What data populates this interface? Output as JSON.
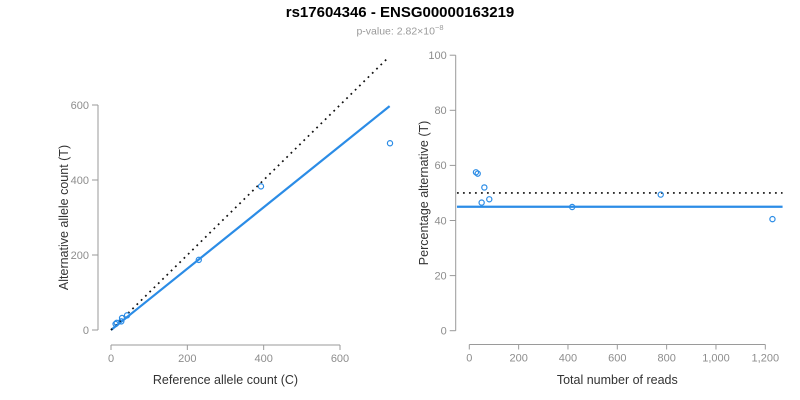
{
  "title": "rs17604346 - ENSG00000163219",
  "subtitle": {
    "prefix": "p-value: 2.82×10",
    "exponent": "−8"
  },
  "colors": {
    "accent_blue": "#2b8ce6",
    "axis_line_gray": "#9a9a9a",
    "tick_text_gray": "#8d8d8d",
    "axis_label_dark": "#333333",
    "dotted_line_black": "#111111",
    "subtitle_gray": "#9a9a9a",
    "title_black": "#000000"
  },
  "chart_data": [
    {
      "type": "scatter",
      "xlabel": "Reference allele count (C)",
      "ylabel": "Alternative allele count (T)",
      "xticks": [
        0,
        200,
        400,
        600
      ],
      "xtick_labels": [
        "0",
        "200",
        "400",
        "600"
      ],
      "yticks": [
        0,
        200,
        400,
        600
      ],
      "ytick_labels": [
        "0",
        "200",
        "400",
        "600"
      ],
      "xlim": [
        0,
        740
      ],
      "ylim": [
        0,
        730
      ],
      "grid": false,
      "points": [
        [
          12,
          16
        ],
        [
          15,
          19
        ],
        [
          27,
          23
        ],
        [
          29,
          32
        ],
        [
          42,
          39
        ],
        [
          230,
          187
        ],
        [
          393,
          383
        ],
        [
          731,
          498
        ]
      ],
      "lines": [
        {
          "style": "solid",
          "color": "blue",
          "x1": 0,
          "y1": 0,
          "x2": 730,
          "y2": 597
        },
        {
          "style": "dotted",
          "color": "black",
          "x1": 0,
          "y1": 0,
          "x2": 725,
          "y2": 725
        }
      ]
    },
    {
      "type": "scatter",
      "xlabel": "Total number of reads",
      "ylabel": "Percentage alternative (T)",
      "xticks": [
        0,
        200,
        400,
        600,
        800,
        1000,
        1200
      ],
      "xtick_labels": [
        "0",
        "200",
        "400",
        "600",
        "800",
        "1,000",
        "1,200"
      ],
      "yticks": [
        0,
        20,
        40,
        60,
        80,
        100
      ],
      "ytick_labels": [
        "0",
        "20",
        "40",
        "60",
        "80",
        "100"
      ],
      "xlim": [
        -50,
        1270
      ],
      "ylim": [
        0,
        100
      ],
      "grid": false,
      "points": [
        [
          27,
          57.5
        ],
        [
          34,
          57
        ],
        [
          50,
          46.5
        ],
        [
          61,
          52
        ],
        [
          81,
          47.7
        ],
        [
          417,
          44.9
        ],
        [
          776,
          49.4
        ],
        [
          1229,
          40.5
        ]
      ],
      "lines": [
        {
          "style": "solid",
          "color": "blue",
          "x1": -50,
          "y1": 45,
          "x2": 1270,
          "y2": 45
        },
        {
          "style": "dotted",
          "color": "black",
          "x1": -50,
          "y1": 50,
          "x2": 1270,
          "y2": 50
        }
      ]
    }
  ]
}
